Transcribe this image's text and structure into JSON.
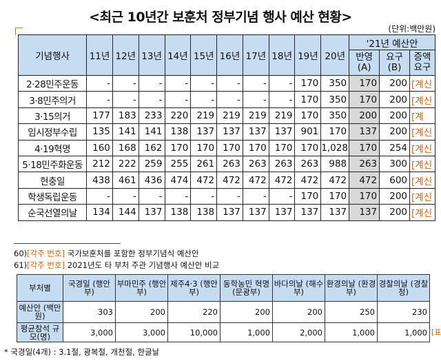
{
  "title": "<최근 10년간 보훈처 정부기념 행사 예산 현황>",
  "unit": "(단위:백만원)",
  "budget_table": {
    "event_header": "기념행사",
    "years": [
      "11년",
      "12년",
      "13년",
      "14년",
      "15년",
      "16년",
      "17년",
      "18년",
      "19년",
      "20년"
    ],
    "proposal_header": "'21년 예산안",
    "sub_headers": [
      "반영(A)",
      "요구(B)",
      "증액요구"
    ],
    "rows": [
      {
        "name": "2·28민주운동",
        "values": [
          "-",
          "-",
          "-",
          "-",
          "-",
          "-",
          "-",
          "-",
          "170",
          "350"
        ],
        "a": "170",
        "b": "200",
        "note": "[계신"
      },
      {
        "name": "3·8민주의거",
        "values": [
          "-",
          "-",
          "-",
          "-",
          "-",
          "-",
          "-",
          "-",
          "170",
          "350"
        ],
        "a": "170",
        "b": "200",
        "note": "[계신"
      },
      {
        "name": "3·15의거",
        "values": [
          "177",
          "183",
          "233",
          "220",
          "219",
          "219",
          "219",
          "219",
          "170",
          "350"
        ],
        "a": "200",
        "b": "200",
        "note": "[계"
      },
      {
        "name": "임시정부수립",
        "values": [
          "135",
          "141",
          "141",
          "138",
          "137",
          "137",
          "137",
          "137",
          "901",
          "170"
        ],
        "a": "137",
        "b": "200",
        "note": "[계신"
      },
      {
        "name": "4·19혁명",
        "values": [
          "160",
          "168",
          "162",
          "170",
          "170",
          "170",
          "170",
          "170",
          "170",
          "1,028"
        ],
        "a": "170",
        "b": "254",
        "note": "[계신"
      },
      {
        "name": "5·18민주화운동",
        "values": [
          "212",
          "222",
          "259",
          "255",
          "261",
          "263",
          "263",
          "263",
          "263",
          "988"
        ],
        "a": "263",
        "b": "300",
        "note": "[계신"
      },
      {
        "name": "현충일",
        "values": [
          "438",
          "461",
          "436",
          "474",
          "472",
          "472",
          "472",
          "472",
          "472",
          "472"
        ],
        "a": "472",
        "b": "600",
        "note": "[계신"
      },
      {
        "name": "학생독립운동",
        "values": [
          "-",
          "-",
          "-",
          "-",
          "-",
          "-",
          "-",
          "-",
          "170",
          "170"
        ],
        "a": "170",
        "b": "200",
        "note": "[계신"
      },
      {
        "name": "순국선열의날",
        "values": [
          "134",
          "144",
          "137",
          "138",
          "138",
          "137",
          "137",
          "137",
          "137",
          "137"
        ],
        "a": "137",
        "b": "200",
        "note": "[계신"
      }
    ]
  },
  "footnotes": [
    {
      "num": "60)",
      "tag": "[각주 번호]",
      "text": "국가보훈처를 포함한 정부기념식 예산안"
    },
    {
      "num": "61)",
      "tag": "[각주 번호]",
      "text": "2021년도 타 부처 주관 기념행사 예산안 비교"
    }
  ],
  "compare_table": {
    "corner": "부처별",
    "columns": [
      "국경일 (행안부)",
      "부마민주 (행안부)",
      "제주4·3 (행안부)",
      "동학농민 혁명 (문광부)",
      "바다의날 (해수부)",
      "환경의날 (환경부)",
      "경찰의날 (경찰청)"
    ],
    "rows": [
      {
        "label": "예산안 (백만원)",
        "values": [
          "303",
          "200",
          "220",
          "200",
          "200",
          "250",
          "230"
        ]
      },
      {
        "label": "평균참석 규모(명)",
        "values": [
          "3,000",
          "3,000",
          "10,000",
          "1,000",
          "2,000",
          "1,000",
          "1,000"
        ]
      }
    ],
    "side_mark": "[표"
  },
  "bottom_note": "* 국경일(4개) : 3.1절, 광복절, 개천절, 한글날"
}
